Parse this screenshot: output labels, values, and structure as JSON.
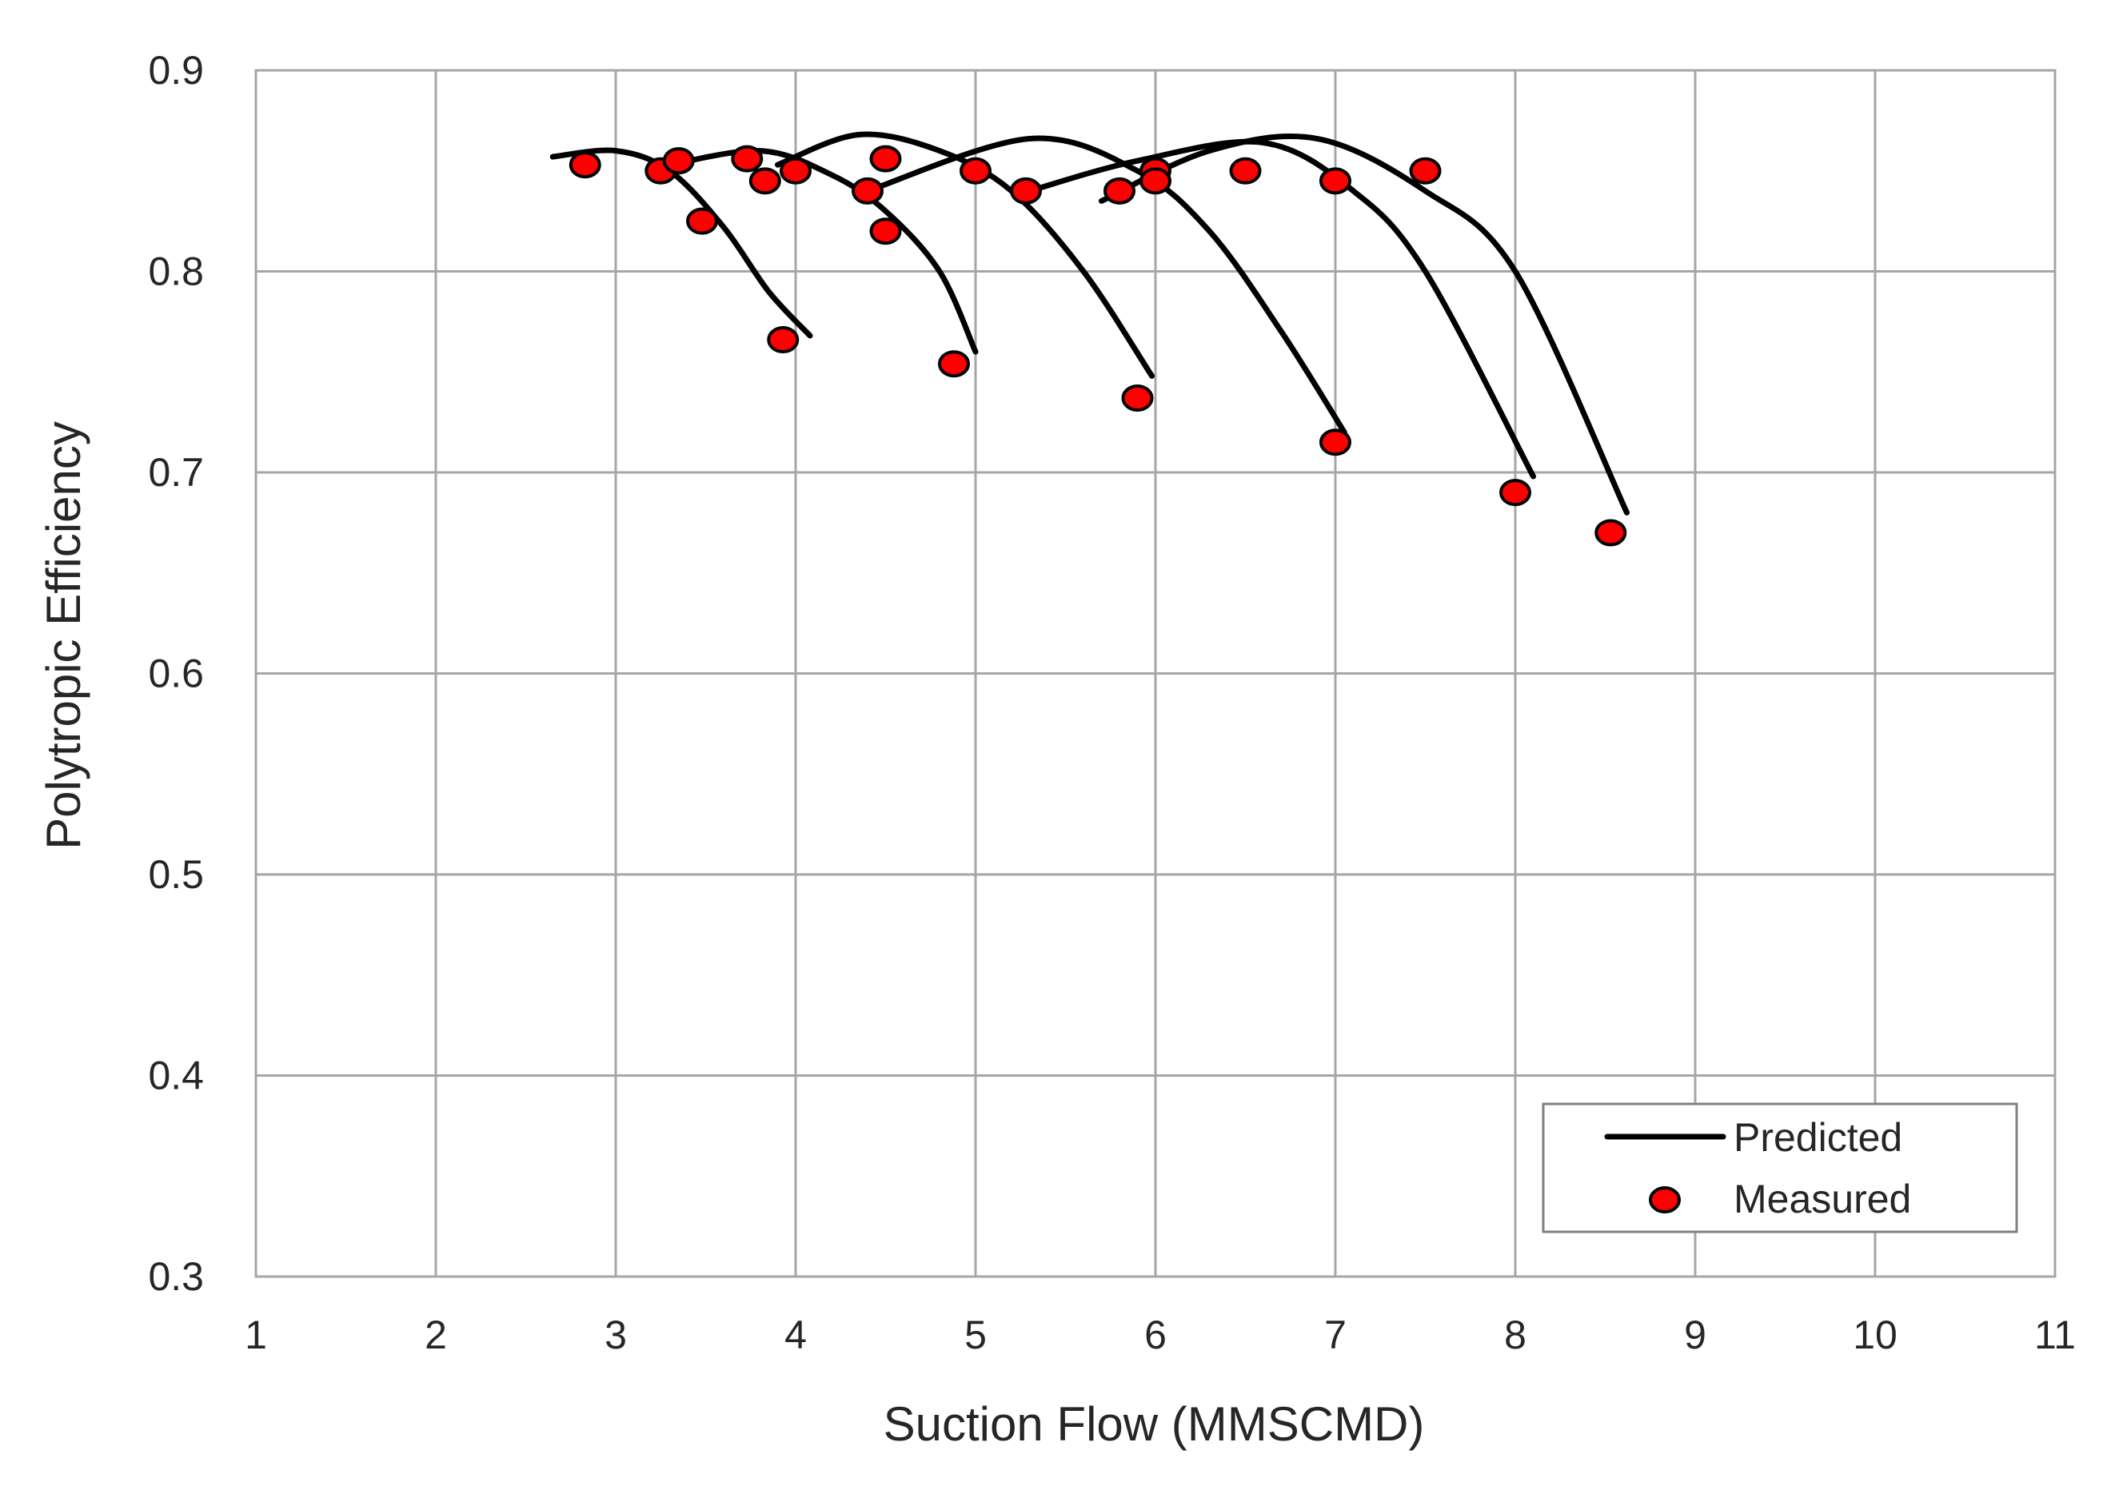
{
  "chart_data": {
    "type": "line",
    "title": "",
    "xlabel": "Suction Flow (MMSCMD)",
    "ylabel": "Polytropic Efficiency",
    "xlim": [
      1,
      11
    ],
    "ylim": [
      0.3,
      0.9
    ],
    "xticks": [
      1,
      2,
      3,
      4,
      5,
      6,
      7,
      8,
      9,
      10,
      11
    ],
    "yticks": [
      0.3,
      0.4,
      0.5,
      0.6,
      0.7,
      0.8,
      0.9
    ],
    "xtick_labels": [
      "1",
      "2",
      "3",
      "4",
      "5",
      "6",
      "7",
      "8",
      "9",
      "10",
      "11"
    ],
    "ytick_labels": [
      "0.3",
      "0.4",
      "0.5",
      "0.6",
      "0.7",
      "0.8",
      "0.9"
    ],
    "grid": true,
    "legend_position": "bottom-right",
    "colors": {
      "predicted": "#000000",
      "measured": "#ff0000"
    },
    "legend": [
      {
        "label": "Predicted",
        "kind": "line"
      },
      {
        "label": "Measured",
        "kind": "marker"
      }
    ],
    "predicted_curves": [
      {
        "x": [
          2.65,
          3.0,
          3.3,
          3.6,
          3.85,
          4.08
        ],
        "y": [
          0.857,
          0.86,
          0.85,
          0.822,
          0.79,
          0.768
        ]
      },
      {
        "x": [
          3.25,
          3.8,
          4.2,
          4.5,
          4.8,
          5.0
        ],
        "y": [
          0.852,
          0.86,
          0.848,
          0.83,
          0.8,
          0.76
        ]
      },
      {
        "x": [
          3.9,
          4.35,
          4.8,
          5.2,
          5.6,
          5.98
        ],
        "y": [
          0.853,
          0.868,
          0.86,
          0.84,
          0.8,
          0.748
        ]
      },
      {
        "x": [
          4.4,
          5.3,
          5.9,
          6.3,
          6.7,
          7.05
        ],
        "y": [
          0.84,
          0.866,
          0.85,
          0.82,
          0.77,
          0.72
        ]
      },
      {
        "x": [
          5.3,
          5.9,
          6.6,
          7.1,
          7.5,
          8.1
        ],
        "y": [
          0.84,
          0.855,
          0.864,
          0.84,
          0.8,
          0.698
        ]
      },
      {
        "x": [
          5.7,
          6.3,
          6.9,
          7.5,
          8.0,
          8.62
        ],
        "y": [
          0.835,
          0.86,
          0.866,
          0.84,
          0.8,
          0.68
        ]
      }
    ],
    "measured_points": [
      {
        "x": 2.83,
        "y": 0.853
      },
      {
        "x": 3.25,
        "y": 0.85
      },
      {
        "x": 3.35,
        "y": 0.855
      },
      {
        "x": 3.48,
        "y": 0.825
      },
      {
        "x": 3.93,
        "y": 0.766
      },
      {
        "x": 3.73,
        "y": 0.856
      },
      {
        "x": 3.83,
        "y": 0.845
      },
      {
        "x": 4.0,
        "y": 0.85
      },
      {
        "x": 4.4,
        "y": 0.84
      },
      {
        "x": 4.5,
        "y": 0.82
      },
      {
        "x": 4.88,
        "y": 0.754
      },
      {
        "x": 4.5,
        "y": 0.856
      },
      {
        "x": 5.0,
        "y": 0.85
      },
      {
        "x": 5.28,
        "y": 0.84
      },
      {
        "x": 5.9,
        "y": 0.737
      },
      {
        "x": 5.8,
        "y": 0.84
      },
      {
        "x": 6.0,
        "y": 0.85
      },
      {
        "x": 6.0,
        "y": 0.845
      },
      {
        "x": 6.5,
        "y": 0.85
      },
      {
        "x": 7.0,
        "y": 0.845
      },
      {
        "x": 7.0,
        "y": 0.715
      },
      {
        "x": 7.5,
        "y": 0.85
      },
      {
        "x": 8.0,
        "y": 0.69
      },
      {
        "x": 8.53,
        "y": 0.67
      }
    ]
  }
}
